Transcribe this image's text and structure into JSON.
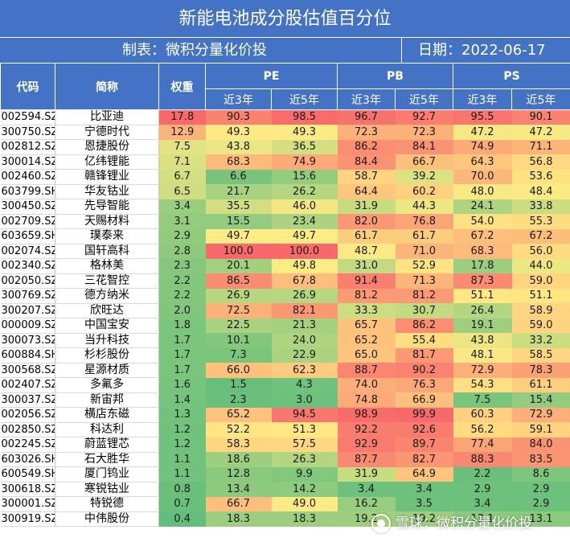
{
  "header": {
    "title": "新能电池成分股估值百分位",
    "maker": "制表：微积分量化价投",
    "date": "日期：2022-06-17"
  },
  "columns": {
    "code": "代码",
    "name": "简称",
    "weight": "权重",
    "groups": [
      "PE",
      "PB",
      "PS"
    ],
    "periods": [
      "近3年",
      "近5年"
    ]
  },
  "rows": [
    {
      "code": "002594.SZ",
      "name": "比亚迪",
      "weight": "17.8",
      "pe3": "90.3",
      "pe5": "98.5",
      "pb3": "96.7",
      "pb5": "92.7",
      "ps3": "95.5",
      "ps5": "90.1"
    },
    {
      "code": "300750.SZ",
      "name": "宁德时代",
      "weight": "12.9",
      "pe3": "49.3",
      "pe5": "49.3",
      "pb3": "72.3",
      "pb5": "72.3",
      "ps3": "47.2",
      "ps5": "47.2"
    },
    {
      "code": "002812.SZ",
      "name": "恩捷股份",
      "weight": "7.5",
      "pe3": "43.8",
      "pe5": "36.5",
      "pb3": "86.2",
      "pb5": "84.1",
      "ps3": "74.9",
      "ps5": "71.1"
    },
    {
      "code": "300014.SZ",
      "name": "亿纬锂能",
      "weight": "7.1",
      "pe3": "68.3",
      "pe5": "74.9",
      "pb3": "84.4",
      "pb5": "66.7",
      "ps3": "64.3",
      "ps5": "56.8"
    },
    {
      "code": "002460.SZ",
      "name": "赣锋锂业",
      "weight": "6.7",
      "pe3": "6.6",
      "pe5": "15.6",
      "pb3": "58.7",
      "pb5": "39.2",
      "ps3": "70.0",
      "ps5": "53.6"
    },
    {
      "code": "603799.SH",
      "name": "华友钴业",
      "weight": "6.5",
      "pe3": "21.7",
      "pe5": "26.2",
      "pb3": "64.4",
      "pb5": "60.2",
      "ps3": "48.0",
      "ps5": "48.4"
    },
    {
      "code": "300450.SZ",
      "name": "先导智能",
      "weight": "3.4",
      "pe3": "35.5",
      "pe5": "46.0",
      "pb3": "31.9",
      "pb5": "44.3",
      "ps3": "24.1",
      "ps5": "33.8"
    },
    {
      "code": "002709.SZ",
      "name": "天赐材料",
      "weight": "3.1",
      "pe3": "15.5",
      "pe5": "23.4",
      "pb3": "82.0",
      "pb5": "76.8",
      "ps3": "54.0",
      "ps5": "55.3"
    },
    {
      "code": "603659.SH",
      "name": "璞泰来",
      "weight": "2.9",
      "pe3": "49.7",
      "pe5": "49.7",
      "pb3": "61.7",
      "pb5": "61.7",
      "ps3": "67.2",
      "ps5": "67.2"
    },
    {
      "code": "002074.SZ",
      "name": "国轩高科",
      "weight": "2.8",
      "pe3": "100.0",
      "pe5": "100.0",
      "pb3": "48.7",
      "pb5": "71.0",
      "ps3": "68.3",
      "ps5": "56.0"
    },
    {
      "code": "002340.SZ",
      "name": "格林美",
      "weight": "2.3",
      "pe3": "20.1",
      "pe5": "49.8",
      "pb3": "31.0",
      "pb5": "52.9",
      "ps3": "17.8",
      "ps5": "44.0"
    },
    {
      "code": "002050.SZ",
      "name": "三花智控",
      "weight": "2.2",
      "pe3": "86.5",
      "pe5": "67.8",
      "pb3": "91.4",
      "pb5": "71.3",
      "ps3": "87.3",
      "ps5": "59.0"
    },
    {
      "code": "300769.SZ",
      "name": "德方纳米",
      "weight": "2.2",
      "pe3": "26.9",
      "pe5": "26.9",
      "pb3": "81.2",
      "pb5": "81.2",
      "ps3": "51.1",
      "ps5": "51.1"
    },
    {
      "code": "300207.SZ",
      "name": "欣旺达",
      "weight": "2.0",
      "pe3": "72.5",
      "pe5": "82.1",
      "pb3": "33.3",
      "pb5": "30.7",
      "ps3": "26.4",
      "ps5": "58.9"
    },
    {
      "code": "000009.SZ",
      "name": "中国宝安",
      "weight": "1.8",
      "pe3": "22.5",
      "pe5": "21.3",
      "pb3": "65.7",
      "pb5": "86.2",
      "ps3": "19.1",
      "ps5": "59.0"
    },
    {
      "code": "300073.SZ",
      "name": "当升科技",
      "weight": "1.7",
      "pe3": "10.1",
      "pe5": "24.0",
      "pb3": "65.2",
      "pb5": "55.4",
      "ps3": "43.8",
      "ps5": "33.2"
    },
    {
      "code": "600884.SH",
      "name": "杉杉股份",
      "weight": "1.7",
      "pe3": "7.3",
      "pe5": "22.9",
      "pb3": "65.0",
      "pb5": "81.7",
      "ps3": "48.1",
      "ps5": "58.5"
    },
    {
      "code": "300568.SZ",
      "name": "星源材质",
      "weight": "1.7",
      "pe3": "66.0",
      "pe5": "62.3",
      "pb3": "88.7",
      "pb5": "90.2",
      "ps3": "72.9",
      "ps5": "78.3"
    },
    {
      "code": "002407.SZ",
      "name": "多氟多",
      "weight": "1.6",
      "pe3": "1.5",
      "pe5": "4.3",
      "pb3": "74.0",
      "pb5": "76.3",
      "ps3": "54.3",
      "ps5": "61.1"
    },
    {
      "code": "300037.SZ",
      "name": "新宙邦",
      "weight": "1.4",
      "pe3": "2.3",
      "pe5": "3.0",
      "pb3": "74.8",
      "pb5": "66.9",
      "ps3": "7.5",
      "ps5": "15.4"
    },
    {
      "code": "002056.SZ",
      "name": "横店东磁",
      "weight": "1.3",
      "pe3": "65.2",
      "pe5": "94.5",
      "pb3": "98.9",
      "pb5": "99.9",
      "ps3": "60.3",
      "ps5": "72.9"
    },
    {
      "code": "002850.SZ",
      "name": "科达利",
      "weight": "1.2",
      "pe3": "52.2",
      "pe5": "51.3",
      "pb3": "92.2",
      "pb5": "92.6",
      "ps3": "56.2",
      "ps5": "59.1"
    },
    {
      "code": "002245.SZ",
      "name": "蔚蓝锂芯",
      "weight": "1.2",
      "pe3": "58.3",
      "pe5": "57.5",
      "pb3": "92.9",
      "pb5": "89.7",
      "ps3": "77.4",
      "ps5": "84.0"
    },
    {
      "code": "603026.SH",
      "name": "石大胜华",
      "weight": "1.1",
      "pe3": "18.6",
      "pe5": "26.3",
      "pb3": "87.7",
      "pb5": "82.7",
      "ps3": "88.3",
      "ps5": "83.5"
    },
    {
      "code": "600549.SH",
      "name": "厦门钨业",
      "weight": "1.1",
      "pe3": "12.8",
      "pe5": "9.9",
      "pb3": "31.9",
      "pb5": "64.9",
      "ps3": "2.2",
      "ps5": "8.6"
    },
    {
      "code": "300618.SZ",
      "name": "寒锐钴业",
      "weight": "0.8",
      "pe3": "13.4",
      "pe5": "14.2",
      "pb3": "3.4",
      "pb5": "3.4",
      "ps3": "2.9",
      "ps5": "2.9"
    },
    {
      "code": "300001.SZ",
      "name": "特锐德",
      "weight": "0.7",
      "pe3": "66.7",
      "pe5": "49.0",
      "pb3": "16.2",
      "pb5": "3.5",
      "ps3": "3.4",
      "ps5": "2.9"
    },
    {
      "code": "300919.SZ",
      "name": "中伟股份",
      "weight": "0.4",
      "pe3": "18.3",
      "pe5": "18.3",
      "pb3": "19.2",
      "pb5": "19.2",
      "ps3": "13.1",
      "ps5": "13.1"
    }
  ],
  "watermark": "雪球：微积分量化价投",
  "colors": {
    "header": "#4472c4",
    "scale_low": "#63be7b",
    "scale_mid": "#ffeb84",
    "scale_high": "#f8696b"
  }
}
